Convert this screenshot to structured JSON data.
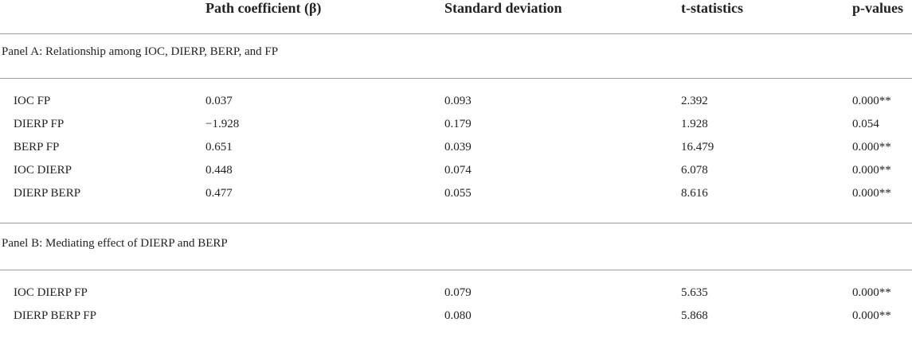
{
  "table": {
    "header": [
      "Path coefficient (β)",
      "Standard deviation",
      "t-statistics",
      "p-values"
    ],
    "panels": [
      {
        "title": "Panel A: Relationship among IOC, DIERP, BERP, and FP",
        "rows": [
          [
            "IOC FP",
            "0.037",
            "0.093",
            "2.392",
            "0.000**"
          ],
          [
            "DIERP FP",
            "−1.928",
            "0.179",
            "1.928",
            "0.054"
          ],
          [
            "BERP FP",
            "0.651",
            "0.039",
            "16.479",
            "0.000**"
          ],
          [
            "IOC DIERP",
            "0.448",
            "0.074",
            "6.078",
            "0.000**"
          ],
          [
            "DIERP BERP",
            "0.477",
            "0.055",
            "8.616",
            "0.000**"
          ]
        ]
      },
      {
        "title": "Panel B: Mediating effect of DIERP and BERP",
        "rows": [
          [
            "IOC DIERP FP",
            null,
            "0.079",
            "5.635",
            "0.000**"
          ],
          [
            "DIERP BERP FP",
            null,
            "0.080",
            "5.868",
            "0.000**"
          ]
        ]
      }
    ]
  }
}
